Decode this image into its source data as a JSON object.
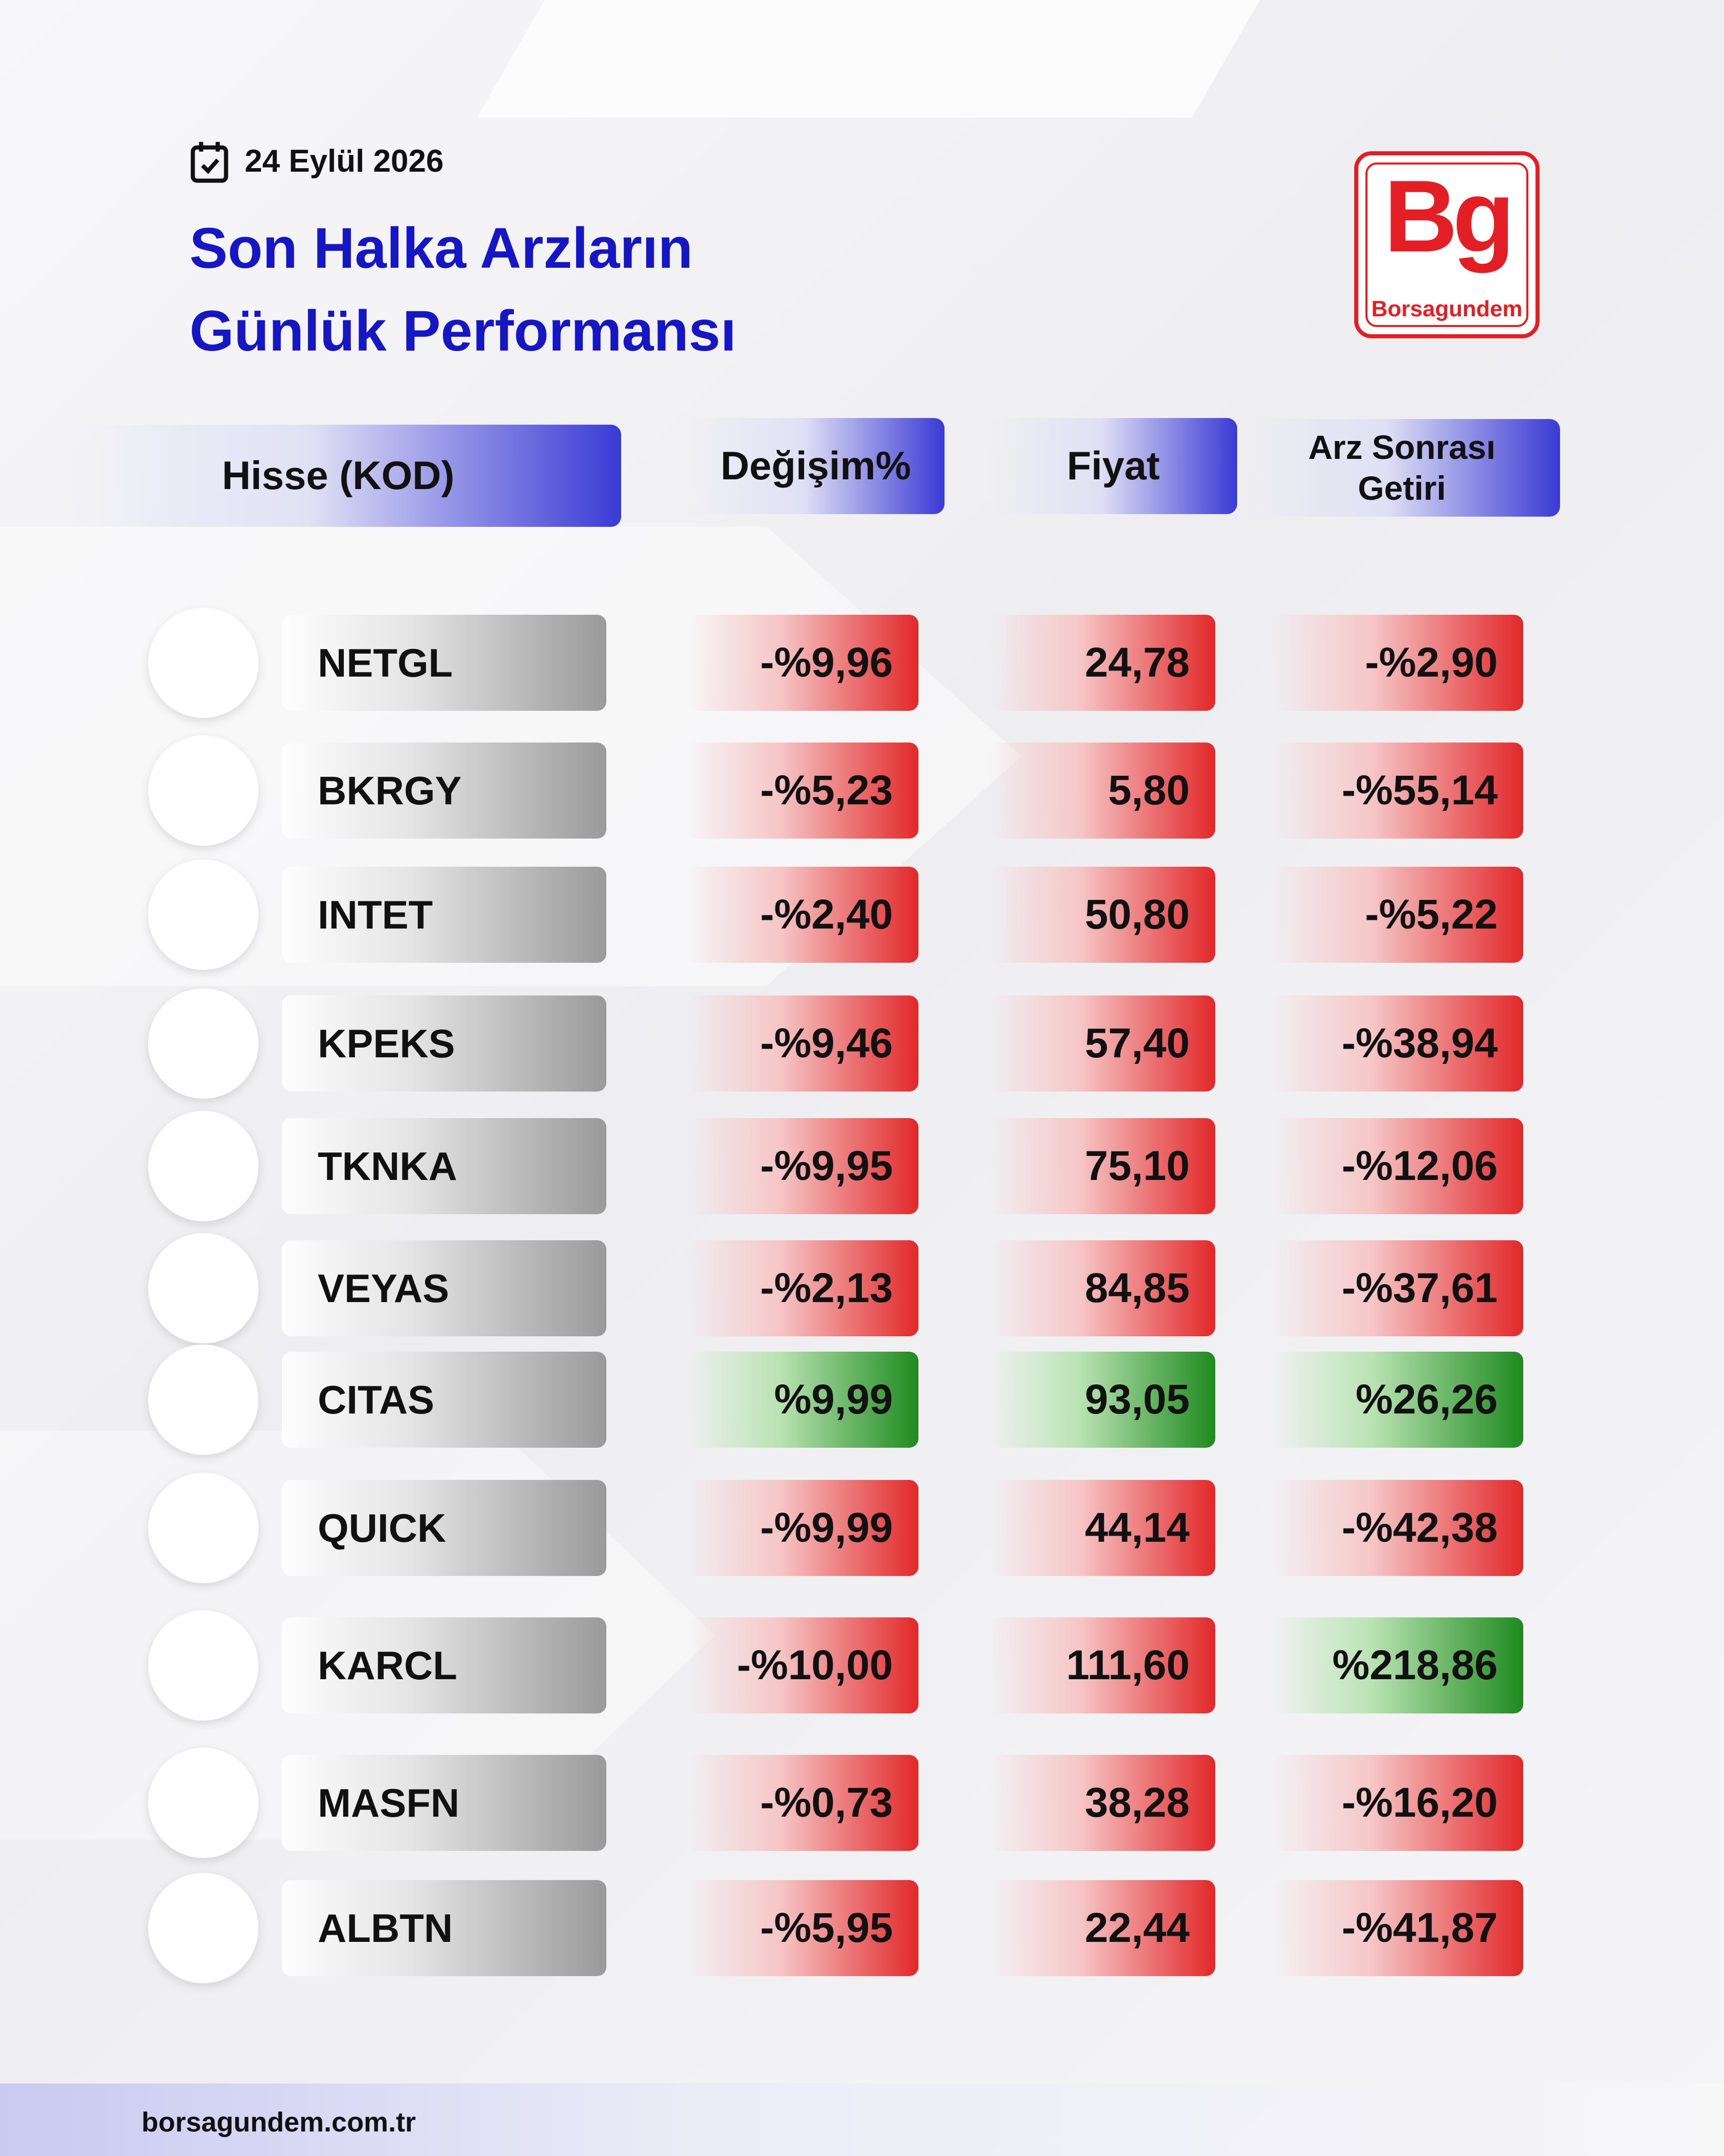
{
  "header": {
    "date": "24 Eylül 2026",
    "title_lines": [
      "Son Halka Arzların",
      "Günlük Performansı"
    ],
    "logo": {
      "mark": "Bg",
      "name": "Borsagundem"
    }
  },
  "table": {
    "columns": [
      "Hisse (KOD)",
      "Değişim%",
      "Fiyat",
      "Arz Sonrası Getiri"
    ],
    "rows": [
      [
        "NETGL",
        "-%9,96",
        "24,78",
        "-%2,90"
      ],
      [
        "BKRGY",
        "-%5,23",
        "5,80",
        "-%55,14"
      ],
      [
        "INTET",
        "-%2,40",
        "50,80",
        "-%5,22"
      ],
      [
        "KPEKS",
        "-%9,46",
        "57,40",
        "-%38,94"
      ],
      [
        "TKNKA",
        "-%9,95",
        "75,10",
        "-%12,06"
      ],
      [
        "VEYAS",
        "-%2,13",
        "84,85",
        "-%37,61"
      ],
      [
        "CITAS",
        "%9,99",
        "93,05",
        "%26,26"
      ],
      [
        "QUICK",
        "-%9,99",
        "44,14",
        "-%42,38"
      ],
      [
        "KARCL",
        "-%10,00",
        "111,60",
        "%218,86"
      ],
      [
        "MASFN",
        "-%0,73",
        "38,28",
        "-%16,20"
      ],
      [
        "ALBTN",
        "-%5,95",
        "22,44",
        "-%41,87"
      ]
    ],
    "row_colors": [
      [
        "red",
        "red",
        "red"
      ],
      [
        "red",
        "red",
        "red"
      ],
      [
        "red",
        "red",
        "red"
      ],
      [
        "red",
        "red",
        "red"
      ],
      [
        "red",
        "red",
        "red"
      ],
      [
        "red",
        "red",
        "red"
      ],
      [
        "green",
        "green",
        "green"
      ],
      [
        "red",
        "red",
        "red"
      ],
      [
        "red",
        "red",
        "green"
      ],
      [
        "red",
        "red",
        "red"
      ],
      [
        "red",
        "red",
        "red"
      ]
    ]
  },
  "footer": {
    "url": "borsagundem.com.tr"
  }
}
